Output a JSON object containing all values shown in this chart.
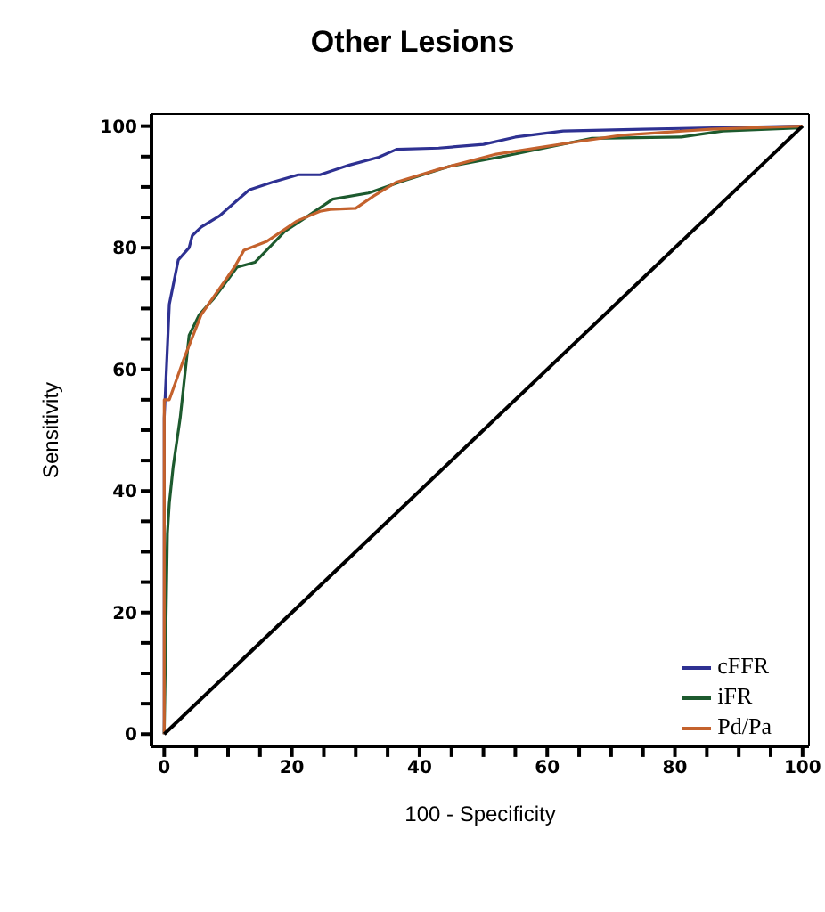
{
  "chart_data": {
    "type": "line",
    "title": "Other Lesions",
    "xlabel": "100 - Specificity",
    "ylabel": "Sensitivity",
    "xlim": [
      -2,
      101
    ],
    "ylim": [
      -2,
      102
    ],
    "xticks": [
      0,
      {
        "value": 5,
        "label": null
      },
      {
        "value": 10,
        "label": null
      },
      {
        "value": 15,
        "label": null
      },
      20,
      {
        "value": 25,
        "label": null
      },
      {
        "value": 30,
        "label": null
      },
      {
        "value": 35,
        "label": null
      },
      40,
      {
        "value": 45,
        "label": null
      },
      {
        "value": 50,
        "label": null
      },
      {
        "value": 55,
        "label": null
      },
      60,
      {
        "value": 65,
        "label": null
      },
      {
        "value": 70,
        "label": null
      },
      {
        "value": 75,
        "label": null
      },
      80,
      {
        "value": 85,
        "label": null
      },
      {
        "value": 90,
        "label": null
      },
      {
        "value": 95,
        "label": null
      },
      100
    ],
    "yticks": [
      0,
      {
        "value": 5,
        "label": null
      },
      {
        "value": 10,
        "label": null
      },
      {
        "value": 15,
        "label": null
      },
      20,
      {
        "value": 25,
        "label": null
      },
      {
        "value": 30,
        "label": null
      },
      {
        "value": 35,
        "label": null
      },
      40,
      {
        "value": 45,
        "label": null
      },
      {
        "value": 50,
        "label": null
      },
      {
        "value": 55,
        "label": null
      },
      60,
      {
        "value": 65,
        "label": null
      },
      {
        "value": 70,
        "label": null
      },
      {
        "value": 75,
        "label": null
      },
      80,
      {
        "value": 85,
        "label": null
      },
      {
        "value": 90,
        "label": null
      },
      {
        "value": 95,
        "label": null
      },
      100
    ],
    "legend": "bottom right",
    "marker": "none",
    "line_style": "solid",
    "series": [
      {
        "name": "cFFR",
        "color": "#2e3192",
        "x": [
          0,
          0,
          0.8,
          2.2,
          3.9,
          4.4,
          5.8,
          8.6,
          13.3,
          17,
          21,
          24.4,
          29,
          33.6,
          36.4,
          43,
          50,
          55,
          62.5,
          75,
          100
        ],
        "values": [
          0,
          52,
          70.7,
          78,
          80,
          82,
          83.4,
          85.2,
          89.5,
          90.8,
          92,
          92,
          93.6,
          94.9,
          96.2,
          96.4,
          97,
          98.2,
          99.2,
          99.5,
          100
        ]
      },
      {
        "name": "iFR",
        "color": "#1d5a2e",
        "x": [
          0,
          0.5,
          0.8,
          1.4,
          2.5,
          3.9,
          5.5,
          7.8,
          11.4,
          14.2,
          18.9,
          22.5,
          26.4,
          32,
          37.5,
          44.7,
          53,
          67,
          81,
          87.5,
          99.5,
          100
        ],
        "values": [
          0,
          33,
          38,
          44,
          52,
          65.6,
          69,
          71.7,
          76.8,
          77.6,
          82.7,
          85.2,
          88,
          89,
          91,
          93.4,
          95,
          98,
          98.2,
          99.2,
          99.7,
          100
        ]
      },
      {
        "name": "Pd/Pa",
        "color": "#c4622d",
        "x": [
          0,
          0,
          0.8,
          3,
          5.8,
          11,
          12.5,
          16,
          20.8,
          24.4,
          26,
          30,
          32.8,
          36.4,
          43,
          52,
          65,
          71.7,
          85.6,
          100
        ],
        "values": [
          0,
          55,
          55,
          61.5,
          69,
          76.8,
          79.6,
          81,
          84.4,
          86,
          86.3,
          86.5,
          88.5,
          90.8,
          92.9,
          95.4,
          97.5,
          98.5,
          99.5,
          100
        ]
      },
      {
        "color": "#000000",
        "x": [
          0,
          100
        ],
        "values": [
          0,
          100
        ]
      }
    ]
  }
}
